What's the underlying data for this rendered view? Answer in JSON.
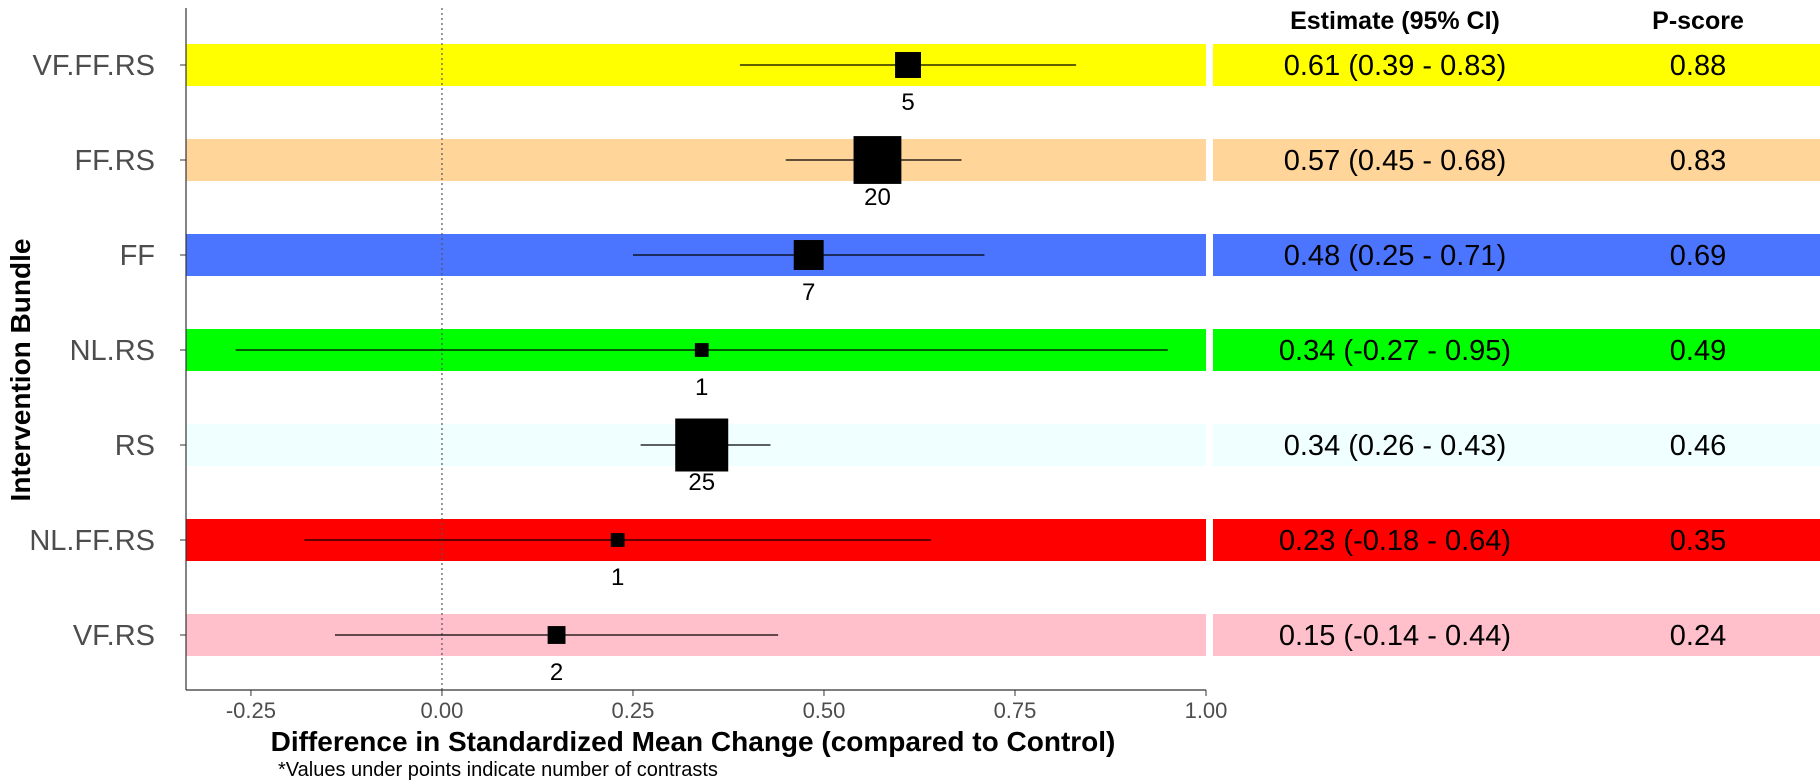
{
  "chart_data": {
    "type": "forest",
    "xlabel": "Difference in Standardized Mean Change (compared to Control)",
    "ylabel": "Intervention Bundle",
    "note": "*Values under points indicate number of contrasts",
    "xlim": [
      -0.335,
      1.0
    ],
    "x_ticks": [
      -0.25,
      0.0,
      0.25,
      0.5,
      0.75,
      1.0
    ],
    "x_tick_labels": [
      "-0.25",
      "0.00",
      "0.25",
      "0.50",
      "0.75",
      "1.00"
    ],
    "reference_line": 0.0,
    "columns": {
      "estimate_header": "Estimate (95% CI)",
      "pscore_header": "P-score"
    },
    "rows": [
      {
        "label": "VF.FF.RS",
        "estimate": 0.61,
        "lower": 0.39,
        "upper": 0.83,
        "n": 5,
        "n_label": "5",
        "estimate_text": "0.61 (0.39 - 0.83)",
        "pscore": "0.88",
        "color": "#FFFF00"
      },
      {
        "label": "FF.RS",
        "estimate": 0.57,
        "lower": 0.45,
        "upper": 0.68,
        "n": 20,
        "n_label": "20",
        "estimate_text": "0.57 (0.45 - 0.68)",
        "pscore": "0.83",
        "color": "#FFD59A"
      },
      {
        "label": "FF",
        "estimate": 0.48,
        "lower": 0.25,
        "upper": 0.71,
        "n": 7,
        "n_label": "7",
        "estimate_text": "0.48 (0.25 - 0.71)",
        "pscore": "0.69",
        "color": "#4C75FF"
      },
      {
        "label": "NL.RS",
        "estimate": 0.34,
        "lower": -0.27,
        "upper": 0.95,
        "n": 1,
        "n_label": "1",
        "estimate_text": "0.34 (-0.27 - 0.95)",
        "pscore": "0.49",
        "color": "#00FF00"
      },
      {
        "label": "RS",
        "estimate": 0.34,
        "lower": 0.26,
        "upper": 0.43,
        "n": 25,
        "n_label": "25",
        "estimate_text": "0.34 (0.26 - 0.43)",
        "pscore": "0.46",
        "color": "#F0FFFF"
      },
      {
        "label": "NL.FF.RS",
        "estimate": 0.23,
        "lower": -0.18,
        "upper": 0.64,
        "n": 1,
        "n_label": "1",
        "estimate_text": "0.23 (-0.18 - 0.64)",
        "pscore": "0.35",
        "color": "#FF0000"
      },
      {
        "label": "VF.RS",
        "estimate": 0.15,
        "lower": -0.14,
        "upper": 0.44,
        "n": 2,
        "n_label": "2",
        "estimate_text": "0.15 (-0.14 - 0.44)",
        "pscore": "0.24",
        "color": "#FFC0CB"
      }
    ]
  }
}
